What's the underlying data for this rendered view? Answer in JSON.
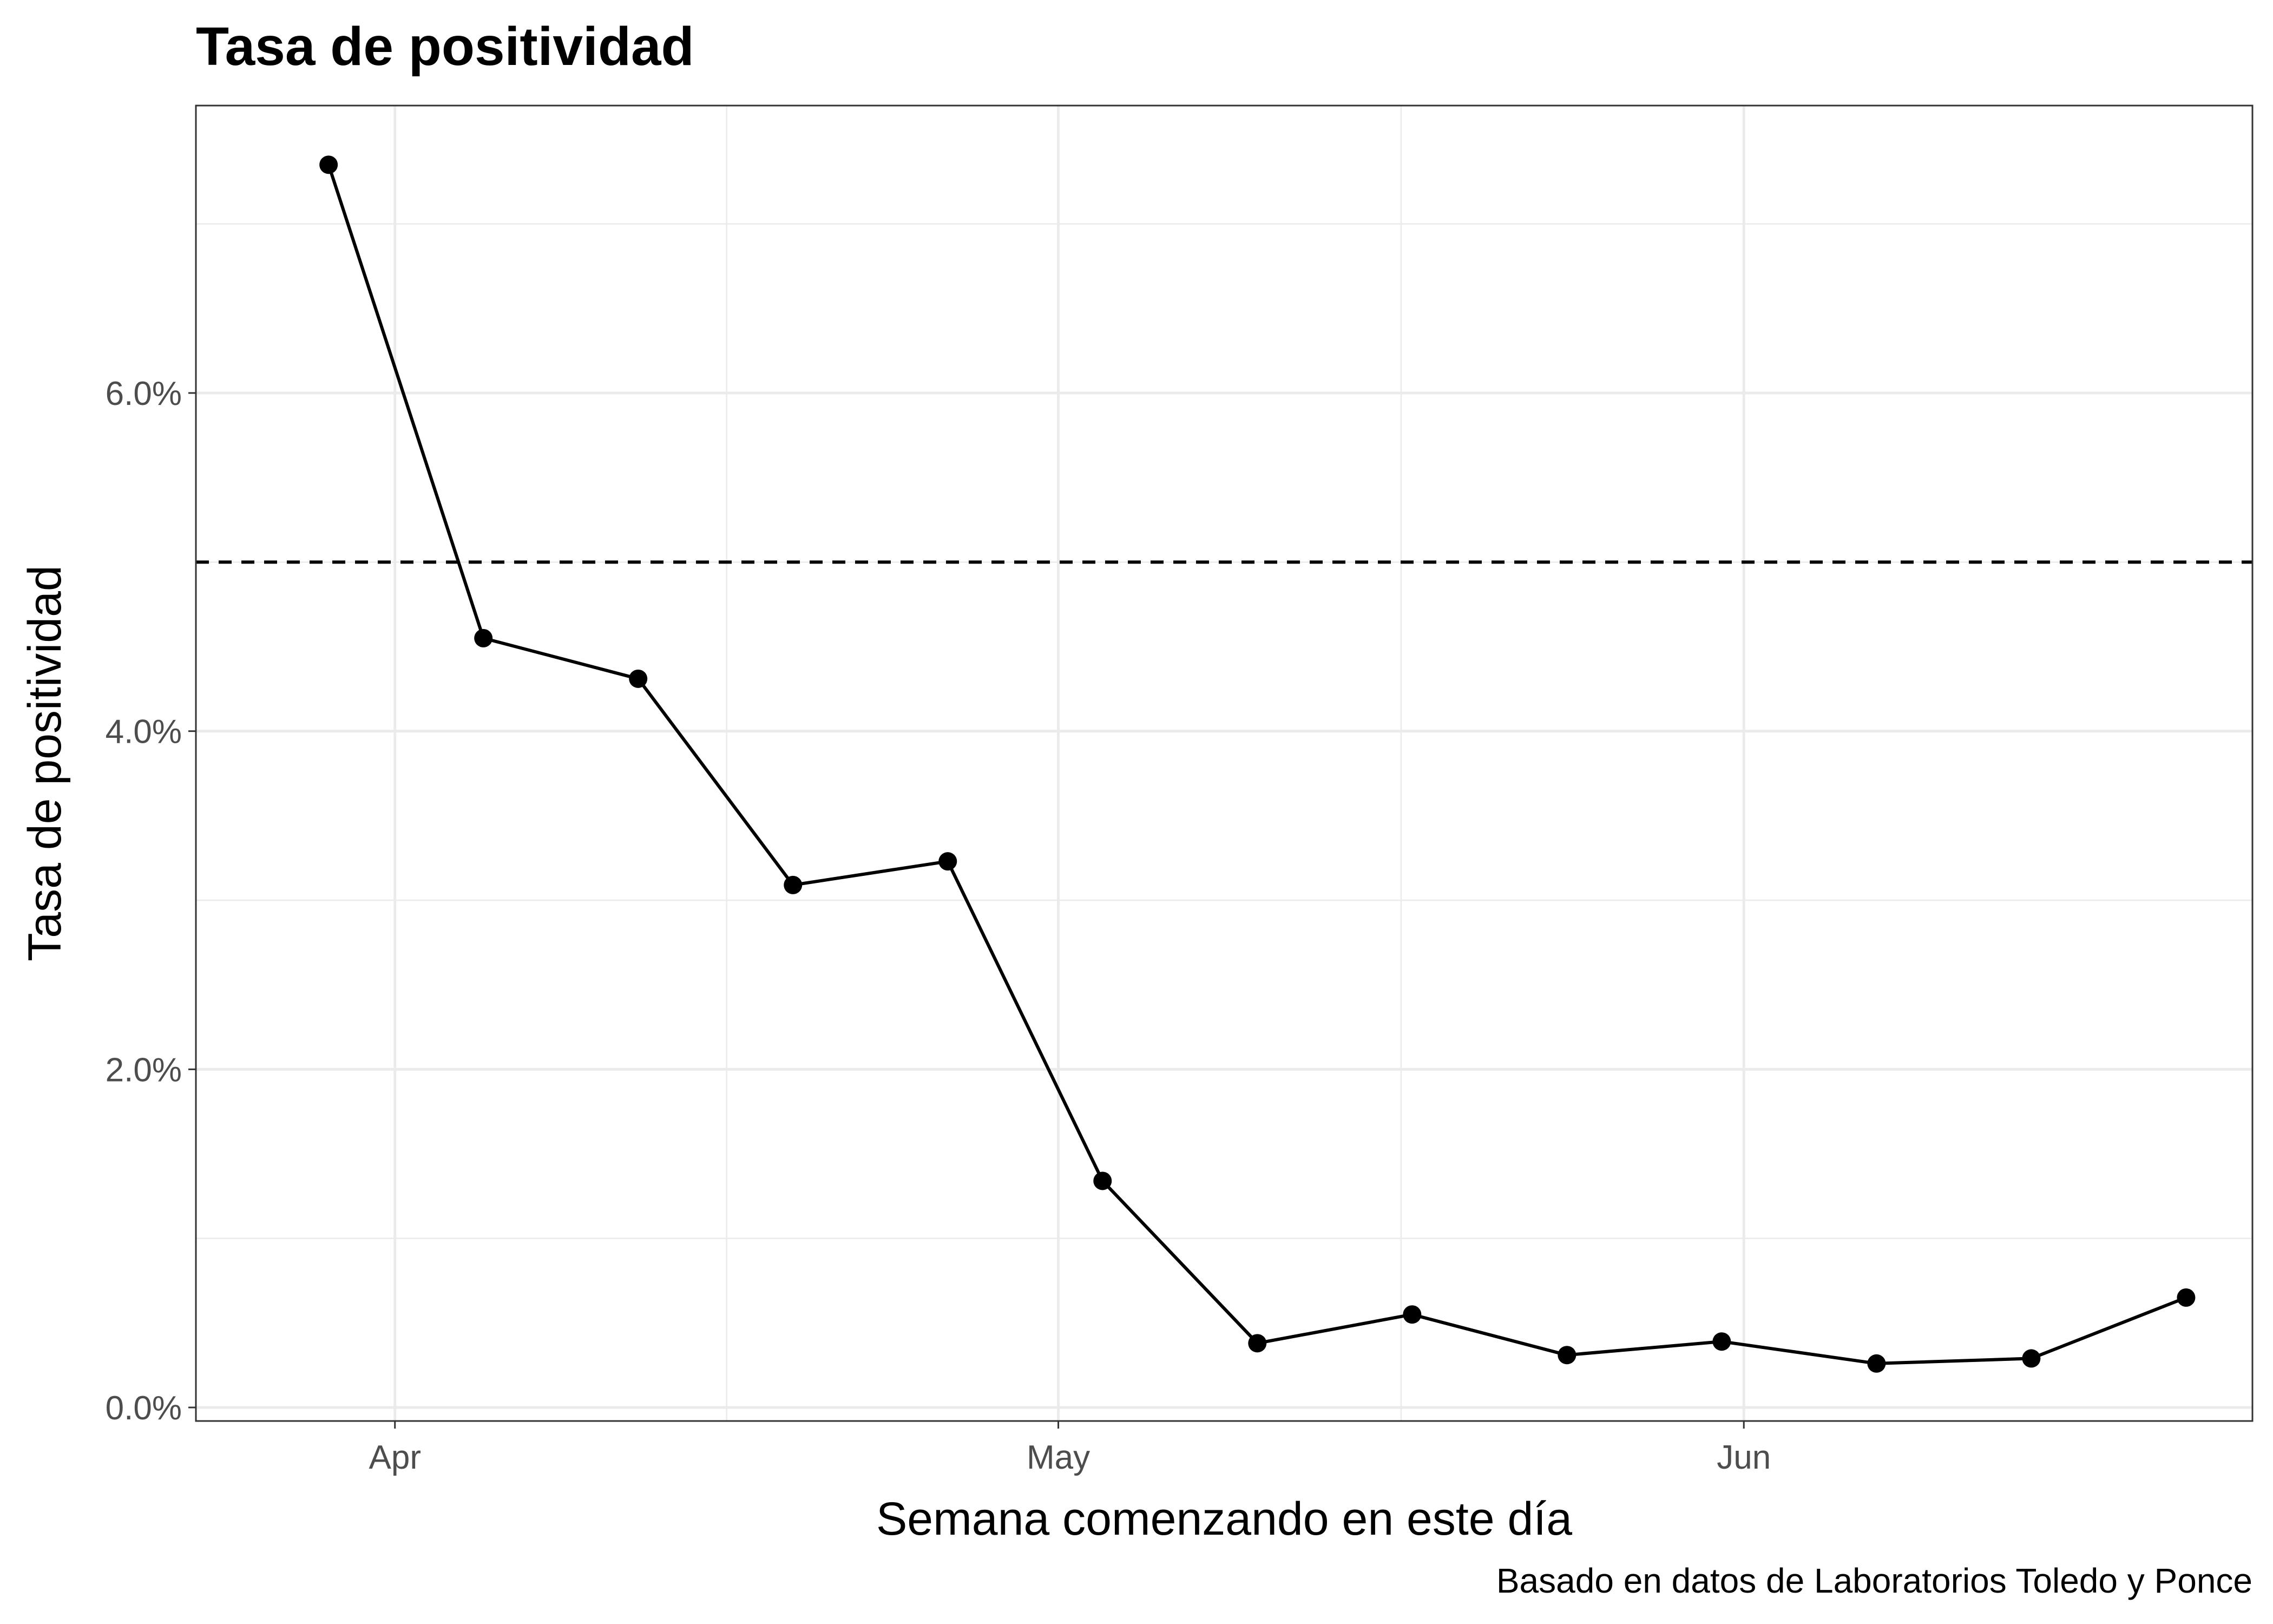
{
  "chart_data": {
    "type": "line",
    "title": "Tasa de positividad",
    "xlabel": "Semana comenzando en este día",
    "ylabel": "Tasa de positividad",
    "caption": "Basado en datos de Laboratorios Toledo y Ponce",
    "x": [
      "2020-03-29",
      "2020-04-05",
      "2020-04-12",
      "2020-04-19",
      "2020-04-26",
      "2020-05-03",
      "2020-05-10",
      "2020-05-17",
      "2020-05-24",
      "2020-05-31",
      "2020-06-07",
      "2020-06-14",
      "2020-06-21"
    ],
    "series": [
      {
        "values": [
          7.35,
          4.55,
          4.31,
          3.09,
          3.23,
          1.34,
          0.38,
          0.55,
          0.31,
          0.39,
          0.26,
          0.29,
          0.65
        ]
      }
    ],
    "reference_line": {
      "y": 5.0,
      "style": "dashed"
    },
    "xlim": [
      "2020-03-23",
      "2020-06-24"
    ],
    "ylim": [
      -0.08,
      7.7
    ],
    "x_ticks": [
      {
        "date": "2020-04-01",
        "label": "Apr"
      },
      {
        "date": "2020-05-01",
        "label": "May"
      },
      {
        "date": "2020-06-01",
        "label": "Jun"
      }
    ],
    "y_ticks": [
      {
        "value": 0,
        "label": "0.0%"
      },
      {
        "value": 2,
        "label": "2.0%"
      },
      {
        "value": 4,
        "label": "4.0%"
      },
      {
        "value": 6,
        "label": "6.0%"
      }
    ],
    "grid": true,
    "line_color": "#000000"
  }
}
